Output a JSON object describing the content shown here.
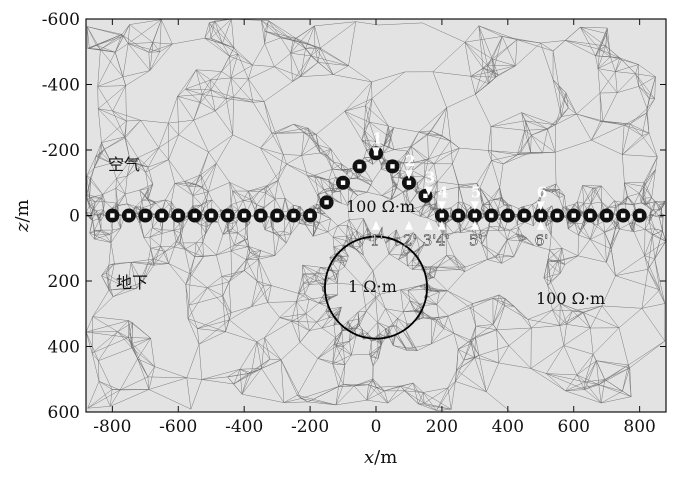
{
  "figure": {
    "x_label_italic": "x",
    "x_label_unit": "/m",
    "y_label_italic": "z",
    "y_label_unit": "/m",
    "x_ticks": [
      "-800",
      "-600",
      "-400",
      "-200",
      "0",
      "200",
      "400",
      "600",
      "800"
    ],
    "y_ticks": [
      "-600",
      "-400",
      "-200",
      "0",
      "200",
      "400",
      "600"
    ],
    "air_label": "空气",
    "ground_label": "地下",
    "air_resistivity_label": "100 Ω·m",
    "anomaly_resistivity_label": "1 Ω·m",
    "ground_resistivity_label": "100 Ω·m",
    "colors": {
      "mesh": "#6e6e6e",
      "background": "#e3e3e3",
      "anomaly_outline": "#000000"
    }
  },
  "chart_data": {
    "type": "scatter",
    "xlim": [
      -880,
      880
    ],
    "ylim": [
      600,
      -600
    ],
    "surface_electrodes_x": [
      -800,
      -750,
      -700,
      -650,
      -600,
      -550,
      -500,
      -450,
      -400,
      -350,
      -300,
      -250,
      -200
    ],
    "ridge_electrodes": [
      {
        "x": -150,
        "z": -40
      },
      {
        "x": -100,
        "z": -100
      },
      {
        "x": -50,
        "z": -150
      },
      {
        "x": 0,
        "z": -190
      },
      {
        "x": 50,
        "z": -150
      },
      {
        "x": 100,
        "z": -100
      },
      {
        "x": 150,
        "z": -60
      }
    ],
    "flat_electrodes_x": [
      200,
      250,
      300,
      350,
      400,
      450,
      500,
      550,
      600,
      650,
      700,
      750,
      800
    ],
    "anomaly": {
      "center_x": 0,
      "center_z": 220,
      "radius": 155
    },
    "stations_top": [
      "1",
      "2",
      "3",
      "4",
      "5",
      "6"
    ],
    "stations_bottom": [
      "1'",
      "2'",
      "3'",
      "4'",
      "5'",
      "6'"
    ],
    "station_x": [
      0,
      100,
      160,
      200,
      300,
      500
    ]
  }
}
